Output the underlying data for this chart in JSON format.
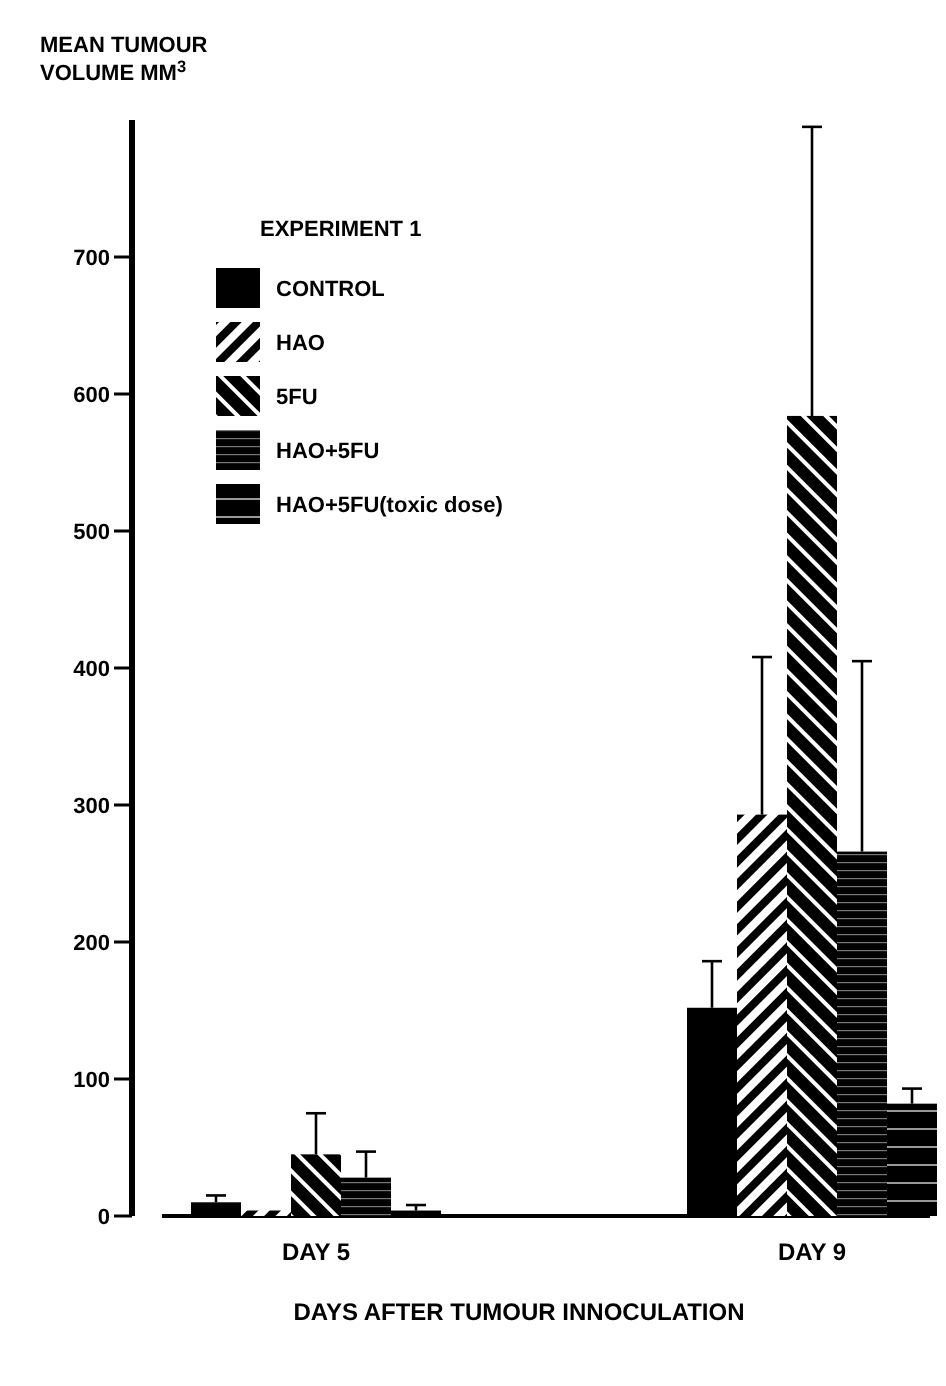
{
  "chart_data": {
    "type": "bar",
    "ylabel": "MEAN TUMOUR VOLUME MM$^{3}$",
    "xlabel": "DAYS AFTER TUMOUR INNOCULATION",
    "legend_title": "EXPERIMENT 1",
    "categories": [
      "DAY 5",
      "DAY 9"
    ],
    "ylim": [
      0,
      800
    ],
    "yticks": [
      0,
      100,
      200,
      300,
      400,
      500,
      600,
      700
    ],
    "legend": "top left",
    "grid": false,
    "series": [
      {
        "name": "CONTROL",
        "color": "#000000",
        "values": [
          10,
          152
        ],
        "errors": [
          5,
          34
        ]
      },
      {
        "name": "HAO",
        "color": "#000000",
        "values": [
          4,
          293
        ],
        "errors": [
          null,
          115
        ]
      },
      {
        "name": "5FU",
        "color": "#000000",
        "values": [
          45,
          584
        ],
        "errors": [
          30,
          211
        ]
      },
      {
        "name": "HAO+5FU",
        "color": "#000000",
        "values": [
          28,
          266
        ],
        "errors": [
          19,
          139
        ]
      },
      {
        "name": "HAO+5FU(toxic dose)",
        "color": "#000000",
        "values": [
          4,
          82
        ],
        "errors": [
          4,
          11
        ]
      }
    ]
  }
}
